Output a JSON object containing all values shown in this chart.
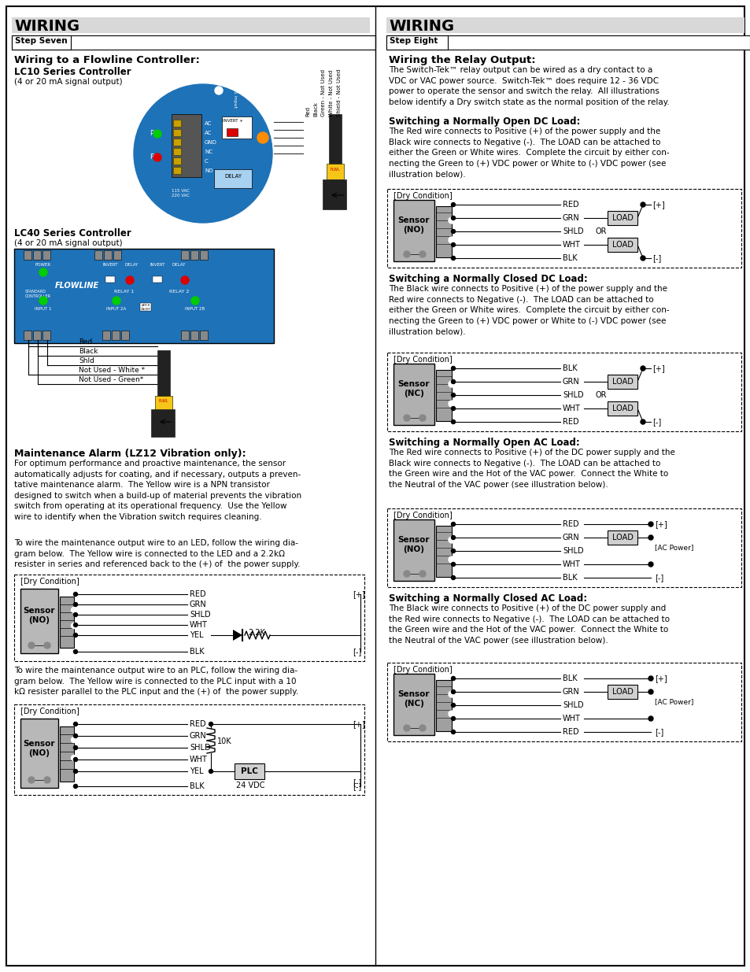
{
  "page_bg": "#ffffff",
  "left_title": "WIRING",
  "right_title": "WIRING",
  "header_bg": "#d8d8d8",
  "step_seven": "Step Seven",
  "step_eight": "Step Eight"
}
